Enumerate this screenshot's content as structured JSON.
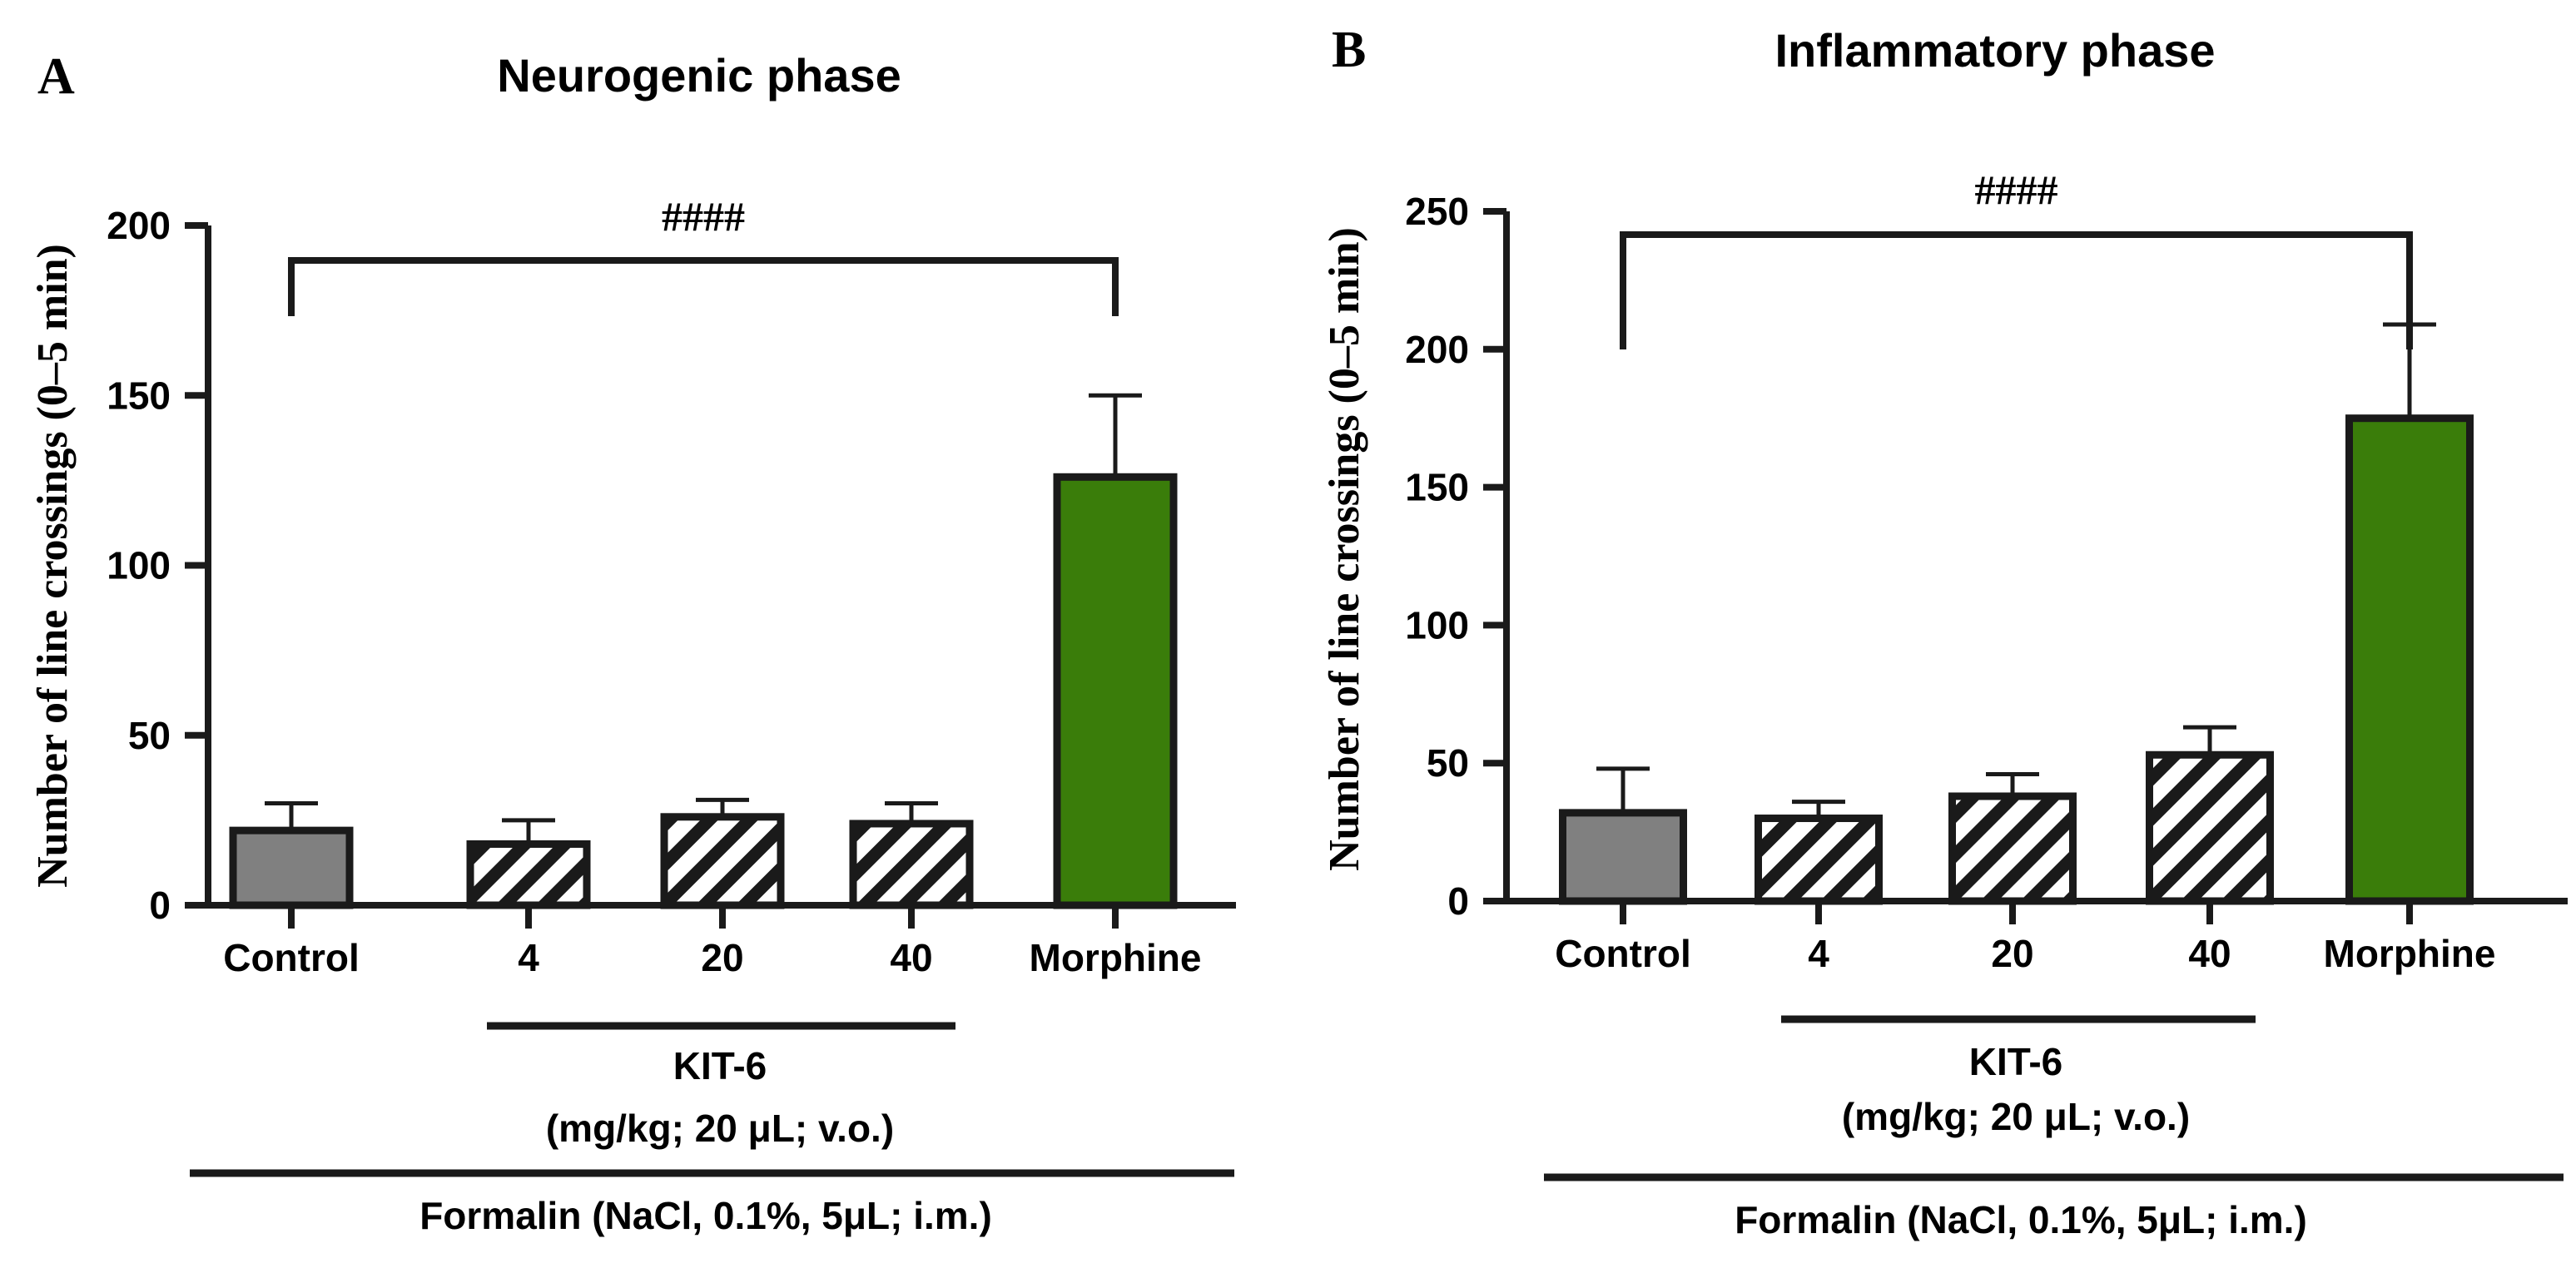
{
  "chart_data": [
    {
      "type": "bar",
      "panel_label": "A",
      "title": "Neurogenic phase",
      "xlabel": "",
      "ylabel": "Number of line crossings (0–5 min)",
      "ylim": [
        0,
        200
      ],
      "yticks": [
        0,
        50,
        100,
        150,
        200
      ],
      "categories": [
        "Control",
        "4",
        "20",
        "40",
        "Morphine"
      ],
      "values": [
        22,
        18,
        26,
        24,
        126
      ],
      "errors": [
        8,
        7,
        5,
        6,
        24
      ],
      "fills": [
        "gray",
        "hatch",
        "hatch",
        "hatch",
        "green"
      ],
      "significance": {
        "from": 0,
        "to": 4,
        "label": "####"
      },
      "group_label_line1": "KIT-6",
      "group_label_line2": "(mg/kg; 20 μL; v.o.)",
      "footer": "Formalin (NaCl, 0.1%, 5μL; i.m.)"
    },
    {
      "type": "bar",
      "panel_label": "B",
      "title": "Inflammatory phase",
      "xlabel": "",
      "ylabel": "Number of line crossings (0–5 min)",
      "ylim": [
        0,
        250
      ],
      "yticks": [
        0,
        50,
        100,
        150,
        200,
        250
      ],
      "categories": [
        "Control",
        "4",
        "20",
        "40",
        "Morphine"
      ],
      "values": [
        32,
        30,
        38,
        53,
        175
      ],
      "errors": [
        16,
        6,
        8,
        10,
        34
      ],
      "fills": [
        "gray",
        "hatch",
        "hatch",
        "hatch",
        "green"
      ],
      "significance": {
        "from": 0,
        "to": 4,
        "label": "####"
      },
      "group_label_line1": "KIT-6",
      "group_label_line2": "(mg/kg; 20 μL; v.o.)",
      "footer": "Formalin (NaCl, 0.1%, 5μL; i.m.)"
    }
  ],
  "colors": {
    "control": "#808080",
    "morphine": "#3a7d0a",
    "stroke": "#1a1a1a",
    "hatch_stripe": "#1a1a1a",
    "hatch_bg": "#ffffff"
  }
}
